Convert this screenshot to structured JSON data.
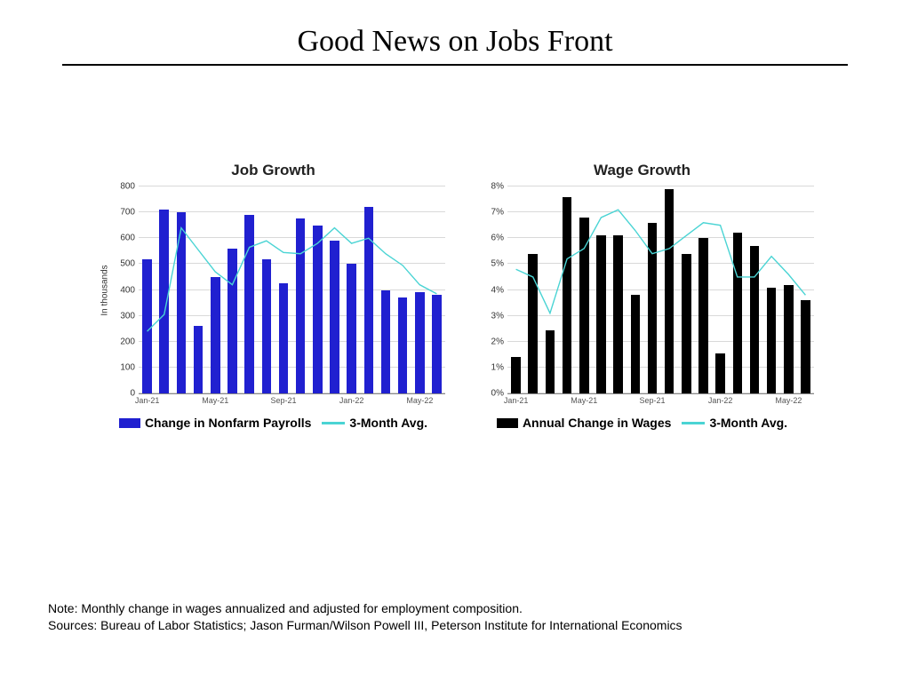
{
  "title": "Good News on Jobs Front",
  "footer": {
    "note": "Note: Monthly change in wages annualized and adjusted for employment composition.",
    "sources": "Sources: Bureau of Labor Statistics; Jason Furman/Wilson Powell III, Peterson Institute for International Economics"
  },
  "colors": {
    "line": "#4ad4d4",
    "grid": "#d9d9d9",
    "axis": "#888888",
    "text": "#000000"
  },
  "charts": {
    "job": {
      "title": "Job Growth",
      "type": "bar+line",
      "bar_color": "#2020d0",
      "line_color": "#4ad4d4",
      "ylabel": "In thousands",
      "ymin": 0,
      "ymax": 800,
      "ytick_step": 100,
      "ytick_suffix": "",
      "categories": [
        "Jan-21",
        "",
        "",
        "",
        "May-21",
        "",
        "",
        "",
        "Sep-21",
        "",
        "",
        "",
        "Jan-22",
        "",
        "",
        "",
        "May-22",
        ""
      ],
      "bars": [
        520,
        710,
        700,
        260,
        450,
        560,
        690,
        520,
        425,
        675,
        650,
        590,
        500,
        720,
        400,
        370,
        390,
        380
      ],
      "line": [
        240,
        305,
        640,
        555,
        470,
        420,
        565,
        590,
        545,
        540,
        580,
        640,
        580,
        600,
        540,
        495,
        420,
        385
      ],
      "legend": {
        "bar": "Change in Nonfarm Payrolls",
        "line": "3-Month Avg."
      }
    },
    "wage": {
      "title": "Wage Growth",
      "type": "bar+line",
      "bar_color": "#000000",
      "line_color": "#4ad4d4",
      "ylabel": "",
      "ymin": 0,
      "ymax": 8,
      "ytick_step": 1,
      "ytick_suffix": "%",
      "categories": [
        "Jan-21",
        "",
        "",
        "",
        "May-21",
        "",
        "",
        "",
        "Sep-21",
        "",
        "",
        "",
        "Jan-22",
        "",
        "",
        "",
        "May-22",
        ""
      ],
      "bars": [
        1.4,
        5.4,
        2.45,
        7.6,
        6.8,
        6.1,
        6.1,
        3.8,
        6.6,
        7.9,
        5.4,
        6.0,
        1.55,
        6.2,
        5.7,
        4.1,
        4.2,
        3.6
      ],
      "line": [
        4.8,
        4.5,
        3.1,
        5.2,
        5.6,
        6.8,
        7.1,
        6.3,
        5.4,
        5.6,
        6.1,
        6.6,
        6.5,
        4.5,
        4.5,
        5.3,
        4.6,
        3.8
      ],
      "legend": {
        "bar": "Annual Change in Wages",
        "line": "3-Month Avg."
      }
    }
  }
}
